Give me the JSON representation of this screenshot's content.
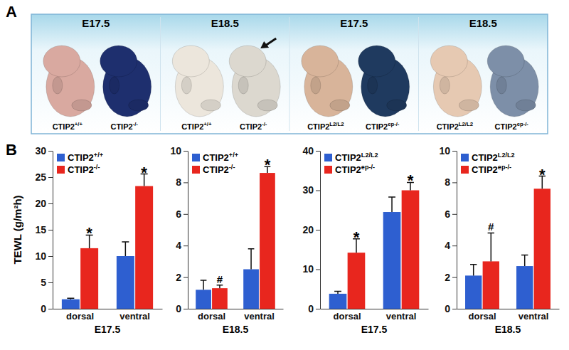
{
  "figure": {
    "panels": [
      "A",
      "B"
    ],
    "photo_groups": [
      {
        "stage": "E17.5",
        "samples": [
          "CTIP2+/+",
          "CTIP2-/-"
        ]
      },
      {
        "stage": "E18.5",
        "samples": [
          "CTIP2+/+",
          "CTIP2-/-"
        ]
      },
      {
        "stage": "E17.5",
        "samples": [
          "CTIP2L2/L2",
          "CTIP2ep-/-"
        ]
      },
      {
        "stage": "E18.5",
        "samples": [
          "CTIP2L2/L2",
          "CTIP2ep-/-"
        ]
      }
    ]
  },
  "chart_data": [
    {
      "type": "bar",
      "ylabel": "TEWL (g/m²h)",
      "xlabel": "E17.5",
      "categories": [
        "dorsal",
        "ventral"
      ],
      "legend": "top-left",
      "ylim": [
        0,
        30
      ],
      "yticks": [
        0,
        5,
        10,
        15,
        20,
        25,
        30
      ],
      "series": [
        {
          "name": "CTIP2+/+",
          "color": "#2e5fd0",
          "values": [
            1.8,
            10.0
          ],
          "errors": [
            0.2,
            2.7
          ],
          "significance": [
            null,
            null
          ]
        },
        {
          "name": "CTIP2-/-",
          "color": "#e8261e",
          "values": [
            11.5,
            23.3
          ],
          "errors": [
            2.5,
            2.3
          ],
          "significance": [
            "*",
            "*"
          ]
        }
      ]
    },
    {
      "type": "bar",
      "xlabel": "E18.5",
      "categories": [
        "dorsal",
        "ventral"
      ],
      "legend": "top-left",
      "ylim": [
        0,
        10
      ],
      "yticks": [
        0,
        2,
        4,
        6,
        8,
        10
      ],
      "series": [
        {
          "name": "CTIP2+/+",
          "color": "#2e5fd0",
          "values": [
            1.2,
            2.5
          ],
          "errors": [
            0.6,
            1.3
          ],
          "significance": [
            null,
            null
          ]
        },
        {
          "name": "CTIP2-/-",
          "color": "#e8261e",
          "values": [
            1.3,
            8.6
          ],
          "errors": [
            0.2,
            0.4
          ],
          "significance": [
            "#",
            "*"
          ]
        }
      ]
    },
    {
      "type": "bar",
      "xlabel": "E17.5",
      "categories": [
        "dorsal",
        "ventral"
      ],
      "legend": "top-left",
      "ylim": [
        0,
        40
      ],
      "yticks": [
        0,
        10,
        20,
        30,
        40
      ],
      "series": [
        {
          "name": "CTIP2L2/L2",
          "color": "#2e5fd0",
          "values": [
            3.8,
            24.5
          ],
          "errors": [
            0.6,
            3.8
          ],
          "significance": [
            null,
            null
          ]
        },
        {
          "name": "CTIP2ep-/-",
          "color": "#e8261e",
          "values": [
            14.2,
            30.0
          ],
          "errors": [
            3.5,
            2.0
          ],
          "significance": [
            "*",
            "*"
          ]
        }
      ]
    },
    {
      "type": "bar",
      "xlabel": "E18.5",
      "categories": [
        "dorsal",
        "ventral"
      ],
      "legend": "top-left",
      "ylim": [
        0,
        10
      ],
      "yticks": [
        0,
        2,
        4,
        6,
        8,
        10
      ],
      "series": [
        {
          "name": "CTIP2L2/L2",
          "color": "#2e5fd0",
          "values": [
            2.1,
            2.7
          ],
          "errors": [
            0.7,
            0.7
          ],
          "significance": [
            null,
            null
          ]
        },
        {
          "name": "CTIP2ep-/-",
          "color": "#e8261e",
          "values": [
            3.0,
            7.6
          ],
          "errors": [
            1.8,
            0.8
          ],
          "significance": [
            "#",
            "*"
          ]
        }
      ]
    }
  ]
}
